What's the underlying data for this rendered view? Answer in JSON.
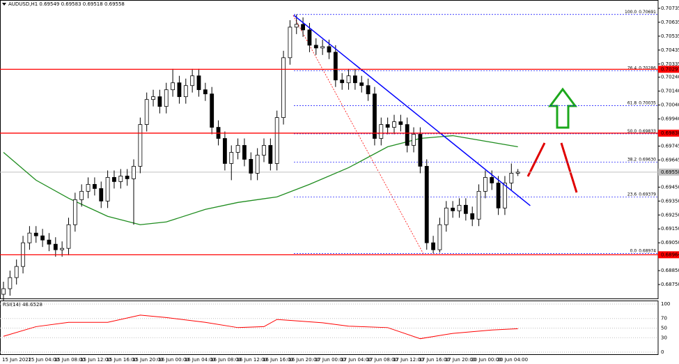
{
  "chart_data": [
    {
      "type": "candlestick",
      "title": "AUDUSD,H1  0.69549 0.69583 0.69518 0.69558",
      "categories": [
        "15 Jun 2022",
        null,
        null,
        null,
        "15 Jun 04:00",
        null,
        null,
        null,
        "15 Jun 08:00",
        null,
        null,
        null,
        "15 Jun 12:00",
        null,
        null,
        null,
        "15 Jun 16:00",
        null,
        null,
        null,
        "15 Jun 20:00",
        null,
        null,
        null,
        "16 Jun 00:00",
        null,
        null,
        null,
        "16 Jun 04:00",
        null,
        null,
        null,
        "16 Jun 08:00",
        null,
        null,
        null,
        "16 Jun 12:00",
        null,
        null,
        null,
        "16 Jun 16:00",
        null,
        null,
        null,
        "16 Jun 20:00",
        null,
        null,
        null,
        "17 Jun 00:00",
        null,
        null,
        null,
        "17 Jun 04:00",
        null,
        null,
        null,
        "17 Jun 08:00",
        null,
        null,
        null,
        "17 Jun 12:00",
        null,
        null,
        null,
        "17 Jun 16:00",
        null,
        null,
        null,
        "17 Jun 20:00",
        null,
        null,
        null,
        "20 Jun 00:00",
        null,
        null,
        null,
        "20 Jun 04:00",
        null,
        null,
        null
      ],
      "open": [
        0.6868,
        0.6872,
        0.688,
        0.6888,
        0.6905,
        0.6912,
        0.691,
        0.6907,
        0.6904,
        0.69,
        0.6901,
        0.6918,
        0.6936,
        0.6942,
        0.6947,
        0.6944,
        0.6935,
        0.6952,
        0.6949,
        0.6953,
        0.6951,
        0.696,
        0.699,
        0.7008,
        0.701,
        0.7003,
        0.7015,
        0.702,
        0.701,
        0.7018,
        0.7025,
        0.7015,
        0.7012,
        0.6988,
        0.698,
        0.6962,
        0.697,
        0.6975,
        0.6965,
        0.6955,
        0.6968,
        0.6975,
        0.6962,
        0.6995,
        0.7038,
        0.706,
        0.7062,
        0.7058,
        0.7047,
        0.7045,
        0.7046,
        0.7042,
        0.7022,
        0.702,
        0.7025,
        0.702,
        0.7018,
        0.7012,
        0.698,
        0.699,
        0.6988,
        0.6992,
        0.699,
        0.6975,
        0.6983,
        0.696,
        0.6905,
        0.69,
        0.6918,
        0.693,
        0.6928,
        0.6932,
        0.6926,
        0.6922,
        0.6942,
        0.6952,
        0.6948,
        0.693,
        0.6948,
        0.6955
      ],
      "high": [
        0.6877,
        0.6885,
        0.6893,
        0.691,
        0.6917,
        0.6917,
        0.6915,
        0.6912,
        0.6909,
        0.6906,
        0.6923,
        0.6941,
        0.6947,
        0.6952,
        0.6952,
        0.6949,
        0.6957,
        0.6957,
        0.6958,
        0.6958,
        0.6965,
        0.6995,
        0.7013,
        0.7015,
        0.7015,
        0.702,
        0.703,
        0.7025,
        0.7023,
        0.703,
        0.703,
        0.702,
        0.7017,
        0.6993,
        0.6985,
        0.6975,
        0.698,
        0.698,
        0.697,
        0.6973,
        0.698,
        0.698,
        0.7,
        0.7043,
        0.7065,
        0.70691,
        0.7067,
        0.7063,
        0.7052,
        0.7051,
        0.7051,
        0.7047,
        0.7027,
        0.703,
        0.703,
        0.7025,
        0.7023,
        0.7017,
        0.6995,
        0.6995,
        0.6997,
        0.6997,
        0.6995,
        0.6988,
        0.6988,
        0.6965,
        0.691,
        0.6923,
        0.6935,
        0.6935,
        0.6937,
        0.6937,
        0.6931,
        0.6947,
        0.6957,
        0.6957,
        0.6953,
        0.6953,
        0.6962,
        0.6958
      ],
      "low": [
        0.6863,
        0.6867,
        0.6875,
        0.6883,
        0.69,
        0.6905,
        0.6902,
        0.6899,
        0.6895,
        0.6895,
        0.6896,
        0.6913,
        0.6931,
        0.6937,
        0.6939,
        0.693,
        0.693,
        0.6944,
        0.6944,
        0.6946,
        0.6918,
        0.6955,
        0.6985,
        0.7003,
        0.6998,
        0.6998,
        0.701,
        0.7005,
        0.7005,
        0.7013,
        0.701,
        0.7007,
        0.6983,
        0.6975,
        0.6957,
        0.695,
        0.6965,
        0.696,
        0.695,
        0.695,
        0.6963,
        0.6957,
        0.6957,
        0.699,
        0.7033,
        0.7055,
        0.7053,
        0.7042,
        0.704,
        0.704,
        0.7037,
        0.7017,
        0.7015,
        0.7015,
        0.7015,
        0.7013,
        0.7007,
        0.6975,
        0.6975,
        0.6983,
        0.6983,
        0.6985,
        0.697,
        0.697,
        0.6955,
        0.69,
        0.68974,
        0.6898,
        0.6913,
        0.6923,
        0.6923,
        0.6921,
        0.6917,
        0.6917,
        0.6937,
        0.6943,
        0.6925,
        0.6925,
        0.6943,
        0.6953
      ],
      "close": [
        0.6872,
        0.688,
        0.6888,
        0.6905,
        0.6912,
        0.691,
        0.6907,
        0.6904,
        0.69,
        0.6901,
        0.6918,
        0.6936,
        0.6942,
        0.6947,
        0.6944,
        0.6935,
        0.6952,
        0.6949,
        0.6953,
        0.6951,
        0.696,
        0.699,
        0.7008,
        0.701,
        0.7003,
        0.7015,
        0.702,
        0.701,
        0.7018,
        0.7025,
        0.7015,
        0.7012,
        0.6988,
        0.698,
        0.6962,
        0.697,
        0.6975,
        0.6965,
        0.6955,
        0.6968,
        0.6975,
        0.6962,
        0.6995,
        0.7038,
        0.706,
        0.7062,
        0.7058,
        0.7047,
        0.7045,
        0.7046,
        0.7042,
        0.7022,
        0.702,
        0.7025,
        0.702,
        0.7018,
        0.7012,
        0.698,
        0.699,
        0.6988,
        0.6992,
        0.699,
        0.6975,
        0.6983,
        0.696,
        0.6905,
        0.69,
        0.6918,
        0.693,
        0.6928,
        0.6932,
        0.6926,
        0.6922,
        0.6942,
        0.6952,
        0.6948,
        0.693,
        0.6948,
        0.6955,
        0.69558
      ],
      "color_up": "#ffffff",
      "color_down": "#000000",
      "ylim": [
        0.6865,
        0.70795
      ],
      "yticks": [
        0.70735,
        0.70635,
        0.70535,
        0.70435,
        0.70335,
        {
          "value": 0.7024,
          "label": "0.70240"
        },
        {
          "value": 0.7014,
          "label": "0.70140"
        },
        {
          "value": 0.7004,
          "label": "0.70040"
        },
        {
          "value": 0.6994,
          "label": "0.69940"
        },
        0.69745,
        0.69645,
        {
          "value": 0.6945,
          "label": "0.69450"
        },
        {
          "value": 0.6935,
          "label": "0.69350"
        },
        {
          "value": 0.6925,
          "label": "0.69250"
        },
        {
          "value": 0.6915,
          "label": "0.69150"
        },
        {
          "value": 0.6905,
          "label": "0.69050"
        },
        {
          "value": 0.6885,
          "label": "0.68850"
        },
        {
          "value": 0.6875,
          "label": "0.68750"
        }
      ],
      "bid": 0.69558,
      "levels": [
        0.70297,
        0.69838,
        0.68964
      ],
      "level_color": "#ff0000",
      "fib_levels": [
        {
          "ratio": "100.0",
          "value": 0.70691,
          "label": "0.70691"
        },
        {
          "ratio": "76.4",
          "value": 0.70286,
          "label": "0.70286"
        },
        {
          "ratio": "61.8",
          "value": 0.70035,
          "label": "0.70035"
        },
        {
          "ratio": "50.0",
          "value": 0.69833,
          "label": "0.69833"
        },
        {
          "ratio": "38.2",
          "value": 0.6963,
          "label": "0.69630"
        },
        {
          "ratio": "23.6",
          "value": 0.69379,
          "label": "0.69379"
        },
        {
          "ratio": "0.0",
          "value": 0.68974,
          "label": "0.68974"
        }
      ],
      "fib_color": "#0000ff",
      "trendline": {
        "x": [
          44.6,
          80.9
        ],
        "values": [
          0.70685,
          0.69317
        ],
        "color": "#0000ff"
      },
      "ma": {
        "x": [
          0,
          5,
          10,
          16,
          21,
          25,
          31,
          36,
          42,
          47,
          53,
          59,
          64,
          69,
          74,
          79
        ],
        "values": [
          0.697,
          0.695,
          0.6937,
          0.6924,
          0.6918,
          0.692,
          0.6929,
          0.6934,
          0.6938,
          0.6947,
          0.6959,
          0.6974,
          0.698,
          0.6982,
          0.6978,
          0.6974
        ],
        "color": "#1e8c1e"
      }
    },
    {
      "type": "line",
      "title": "RSI(14) 48.6528",
      "x": [
        0,
        5,
        10,
        16,
        21,
        25,
        31,
        36,
        40,
        42,
        45,
        49,
        53,
        59,
        64,
        69,
        75,
        79
      ],
      "values": [
        33,
        53,
        62,
        62,
        77,
        72,
        62,
        51,
        53,
        68,
        65,
        61,
        54,
        51,
        28,
        39,
        46,
        48.65
      ],
      "color": "#ff0000",
      "ylim": [
        0,
        100
      ],
      "yticks": [
        100,
        70,
        50,
        30,
        0
      ]
    }
  ]
}
